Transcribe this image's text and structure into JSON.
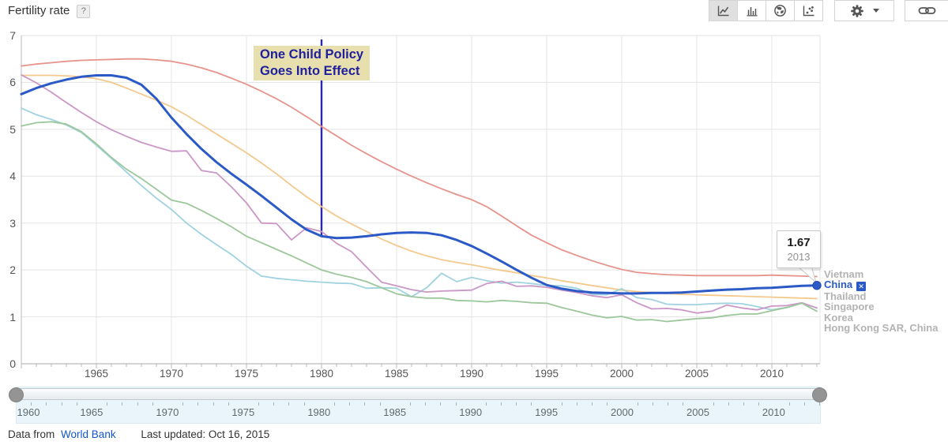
{
  "header": {
    "title": "Fertility rate",
    "help_label": "?"
  },
  "toolbar": {
    "chart_types": [
      {
        "icon": "line-chart-icon",
        "selected": true
      },
      {
        "icon": "bar-chart-icon",
        "selected": false
      },
      {
        "icon": "map-chart-icon",
        "selected": false
      },
      {
        "icon": "scatter-chart-icon",
        "selected": false
      }
    ],
    "settings_icon": "gear-icon",
    "link_icon": "link-icon"
  },
  "chart_data": {
    "type": "line",
    "title": "Fertility rate",
    "xlabel": "",
    "ylabel": "",
    "ylim": [
      0,
      7
    ],
    "yticks": [
      0,
      1,
      2,
      3,
      4,
      5,
      6,
      7
    ],
    "xticks": [
      1965,
      1970,
      1975,
      1980,
      1985,
      1990,
      1995,
      2000,
      2005,
      2010
    ],
    "grid": true,
    "legend_position": "right",
    "x": [
      1960,
      1961,
      1962,
      1963,
      1964,
      1965,
      1966,
      1967,
      1968,
      1969,
      1970,
      1971,
      1972,
      1973,
      1974,
      1975,
      1976,
      1977,
      1978,
      1979,
      1980,
      1981,
      1982,
      1983,
      1984,
      1985,
      1986,
      1987,
      1988,
      1989,
      1990,
      1991,
      1992,
      1993,
      1994,
      1995,
      1996,
      1997,
      1998,
      1999,
      2000,
      2001,
      2002,
      2003,
      2004,
      2005,
      2006,
      2007,
      2008,
      2009,
      2010,
      2011,
      2012,
      2013
    ],
    "series": [
      {
        "name": "Vietnam",
        "color": "#e6948c",
        "width": 1.8,
        "values": [
          6.35,
          6.39,
          6.42,
          6.45,
          6.47,
          6.48,
          6.49,
          6.5,
          6.5,
          6.48,
          6.45,
          6.39,
          6.31,
          6.21,
          6.09,
          5.96,
          5.81,
          5.65,
          5.47,
          5.27,
          5.06,
          4.86,
          4.66,
          4.48,
          4.31,
          4.15,
          4.0,
          3.86,
          3.73,
          3.61,
          3.5,
          3.35,
          3.15,
          2.94,
          2.74,
          2.58,
          2.43,
          2.31,
          2.2,
          2.1,
          2.01,
          1.95,
          1.92,
          1.9,
          1.89,
          1.88,
          1.88,
          1.88,
          1.88,
          1.88,
          1.89,
          1.88,
          1.87,
          1.86
        ]
      },
      {
        "name": "Thailand",
        "color": "#f3c98e",
        "width": 1.8,
        "values": [
          6.15,
          6.15,
          6.15,
          6.14,
          6.12,
          6.08,
          6.0,
          5.88,
          5.75,
          5.62,
          5.48,
          5.3,
          5.1,
          4.9,
          4.7,
          4.5,
          4.28,
          4.05,
          3.8,
          3.56,
          3.35,
          3.15,
          2.98,
          2.82,
          2.66,
          2.52,
          2.4,
          2.3,
          2.22,
          2.16,
          2.11,
          2.05,
          1.99,
          1.94,
          1.88,
          1.83,
          1.77,
          1.72,
          1.67,
          1.62,
          1.57,
          1.54,
          1.52,
          1.5,
          1.48,
          1.47,
          1.46,
          1.45,
          1.44,
          1.43,
          1.42,
          1.41,
          1.4,
          1.39
        ]
      },
      {
        "name": "Singapore",
        "color": "#a0d2e0",
        "width": 1.8,
        "values": [
          5.45,
          5.31,
          5.21,
          5.09,
          4.93,
          4.66,
          4.38,
          4.09,
          3.8,
          3.53,
          3.29,
          3.0,
          2.76,
          2.54,
          2.33,
          2.08,
          1.87,
          1.82,
          1.79,
          1.76,
          1.74,
          1.72,
          1.71,
          1.61,
          1.62,
          1.61,
          1.43,
          1.62,
          1.93,
          1.75,
          1.84,
          1.77,
          1.72,
          1.74,
          1.71,
          1.67,
          1.66,
          1.61,
          1.48,
          1.47,
          1.6,
          1.41,
          1.37,
          1.27,
          1.26,
          1.26,
          1.28,
          1.29,
          1.28,
          1.22,
          1.15,
          1.2,
          1.29,
          1.19
        ]
      },
      {
        "name": "Korea",
        "color": "#cb97c6",
        "width": 1.8,
        "values": [
          6.16,
          5.99,
          5.79,
          5.57,
          5.36,
          5.16,
          4.99,
          4.85,
          4.72,
          4.62,
          4.53,
          4.54,
          4.12,
          4.07,
          3.77,
          3.43,
          3.0,
          2.99,
          2.64,
          2.9,
          2.82,
          2.57,
          2.39,
          2.06,
          1.74,
          1.66,
          1.58,
          1.53,
          1.55,
          1.56,
          1.57,
          1.71,
          1.76,
          1.65,
          1.66,
          1.63,
          1.57,
          1.52,
          1.45,
          1.41,
          1.47,
          1.3,
          1.17,
          1.18,
          1.15,
          1.08,
          1.12,
          1.25,
          1.19,
          1.15,
          1.23,
          1.24,
          1.3,
          1.19
        ]
      },
      {
        "name": "Hong Kong SAR, China",
        "color": "#9cc79b",
        "width": 1.8,
        "values": [
          5.07,
          5.14,
          5.16,
          5.11,
          4.95,
          4.69,
          4.4,
          4.15,
          3.95,
          3.72,
          3.49,
          3.42,
          3.27,
          3.1,
          2.92,
          2.72,
          2.58,
          2.44,
          2.3,
          2.15,
          2.0,
          1.91,
          1.84,
          1.75,
          1.62,
          1.49,
          1.43,
          1.4,
          1.4,
          1.35,
          1.34,
          1.32,
          1.35,
          1.33,
          1.3,
          1.29,
          1.2,
          1.12,
          1.04,
          0.98,
          1.01,
          0.93,
          0.94,
          0.9,
          0.93,
          0.96,
          0.98,
          1.03,
          1.06,
          1.06,
          1.13,
          1.2,
          1.29,
          1.12
        ]
      },
      {
        "name": "China",
        "color": "#2b5ac7",
        "width": 3,
        "highlighted": true,
        "values": [
          5.75,
          5.88,
          5.98,
          6.06,
          6.12,
          6.15,
          6.15,
          6.1,
          5.95,
          5.65,
          5.25,
          4.9,
          4.58,
          4.3,
          4.05,
          3.82,
          3.58,
          3.33,
          3.08,
          2.86,
          2.72,
          2.68,
          2.69,
          2.72,
          2.76,
          2.79,
          2.8,
          2.79,
          2.74,
          2.64,
          2.51,
          2.35,
          2.18,
          2.0,
          1.83,
          1.68,
          1.6,
          1.55,
          1.52,
          1.51,
          1.5,
          1.5,
          1.51,
          1.51,
          1.52,
          1.54,
          1.56,
          1.58,
          1.59,
          1.61,
          1.62,
          1.64,
          1.66,
          1.67
        ]
      }
    ],
    "endpoint": {
      "series": "China",
      "year": 2013,
      "value": 1.67
    }
  },
  "annotation": {
    "line1": "One Child Policy",
    "line2": "Goes Into Effect",
    "year": 1980,
    "text_color": "#20209d",
    "line_color": "#2a29ad",
    "bg_color": "#e8dfae"
  },
  "tooltip": {
    "value": "1.67",
    "year": "2013"
  },
  "legend": {
    "items": [
      {
        "label": "Vietnam",
        "active": false
      },
      {
        "label": "China",
        "active": true,
        "close_icon": "✕"
      },
      {
        "label": "Thailand",
        "active": false
      },
      {
        "label": "Singapore",
        "active": false
      },
      {
        "label": "Korea",
        "active": false
      },
      {
        "label": "Hong Kong SAR, China",
        "active": false
      }
    ]
  },
  "slider": {
    "min": 1960,
    "max": 2013,
    "labels": [
      1960,
      1965,
      1970,
      1975,
      1980,
      1985,
      1990,
      1995,
      2000,
      2005,
      2010
    ]
  },
  "footer": {
    "prefix": "Data from",
    "link_label": "World Bank",
    "updated_label": "Last updated: Oct 16, 2015"
  }
}
